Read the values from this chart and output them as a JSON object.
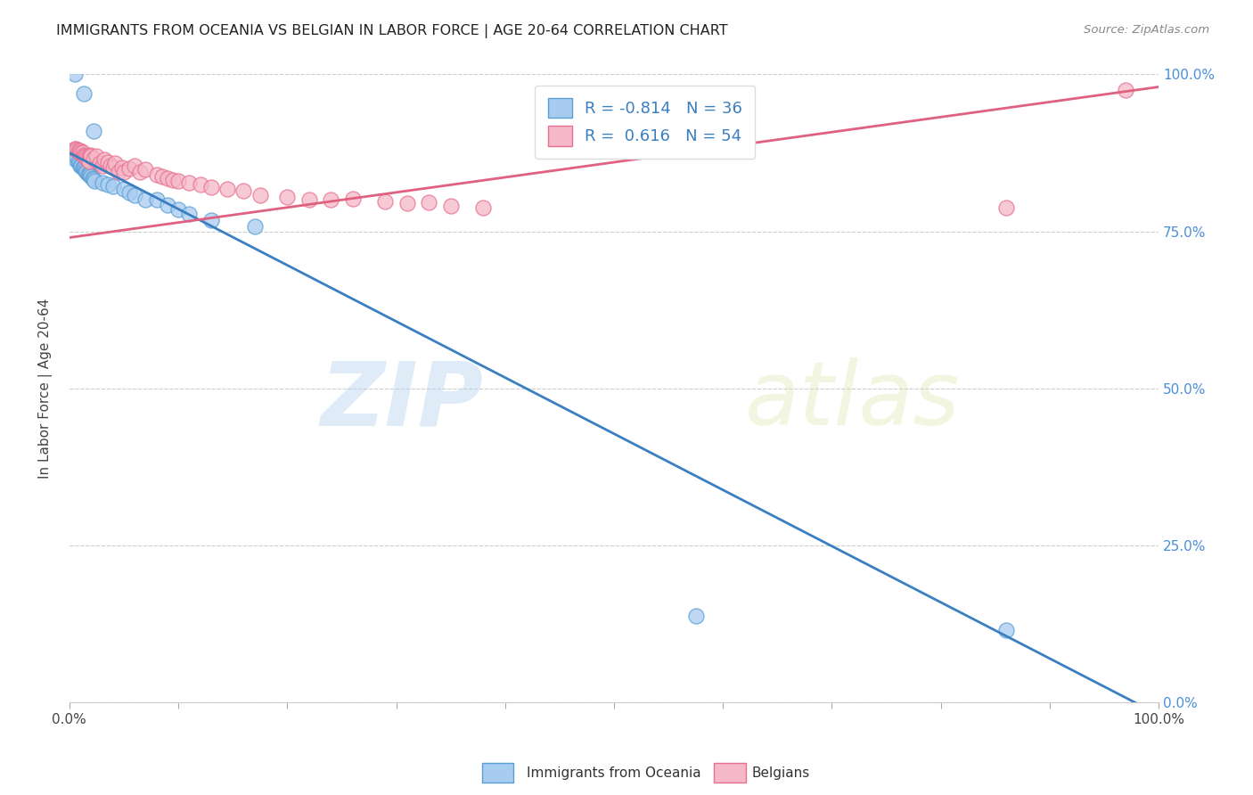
{
  "title": "IMMIGRANTS FROM OCEANIA VS BELGIAN IN LABOR FORCE | AGE 20-64 CORRELATION CHART",
  "source": "Source: ZipAtlas.com",
  "ylabel": "In Labor Force | Age 20-64",
  "xlim": [
    0.0,
    1.0
  ],
  "ylim": [
    0.0,
    1.0
  ],
  "xticks": [
    0.0,
    0.1,
    0.2,
    0.3,
    0.4,
    0.5,
    0.6,
    0.7,
    0.8,
    0.9,
    1.0
  ],
  "xticklabels_show": {
    "0.0": "0.0%",
    "1.0": "100.0%"
  },
  "yticks": [
    0.0,
    0.25,
    0.5,
    0.75,
    1.0
  ],
  "yticklabels_right": [
    "0.0%",
    "25.0%",
    "50.0%",
    "75.0%",
    "100.0%"
  ],
  "blue_R": "-0.814",
  "blue_N": "36",
  "pink_R": "0.616",
  "pink_N": "54",
  "blue_color": "#A8CCF0",
  "pink_color": "#F5B8C8",
  "blue_edge_color": "#5A9FD4",
  "pink_edge_color": "#E87090",
  "blue_line_color": "#3A7FC1",
  "pink_line_color": "#E06080",
  "right_axis_color": "#4A90D9",
  "watermark_zip": "ZIP",
  "watermark_atlas": "atlas",
  "legend_label_blue": "Immigrants from Oceania",
  "legend_label_pink": "Belgians",
  "blue_points": [
    [
      0.005,
      1.0
    ],
    [
      0.013,
      0.97
    ],
    [
      0.022,
      0.91
    ],
    [
      0.006,
      0.865
    ],
    [
      0.007,
      0.868
    ],
    [
      0.008,
      0.862
    ],
    [
      0.009,
      0.858
    ],
    [
      0.01,
      0.855
    ],
    [
      0.011,
      0.855
    ],
    [
      0.012,
      0.852
    ],
    [
      0.013,
      0.852
    ],
    [
      0.014,
      0.848
    ],
    [
      0.015,
      0.846
    ],
    [
      0.016,
      0.845
    ],
    [
      0.017,
      0.842
    ],
    [
      0.018,
      0.84
    ],
    [
      0.019,
      0.84
    ],
    [
      0.02,
      0.838
    ],
    [
      0.021,
      0.835
    ],
    [
      0.022,
      0.833
    ],
    [
      0.023,
      0.83
    ],
    [
      0.03,
      0.828
    ],
    [
      0.035,
      0.825
    ],
    [
      0.04,
      0.822
    ],
    [
      0.05,
      0.818
    ],
    [
      0.055,
      0.812
    ],
    [
      0.06,
      0.808
    ],
    [
      0.07,
      0.8
    ],
    [
      0.08,
      0.8
    ],
    [
      0.09,
      0.792
    ],
    [
      0.1,
      0.785
    ],
    [
      0.11,
      0.778
    ],
    [
      0.13,
      0.768
    ],
    [
      0.17,
      0.758
    ],
    [
      0.575,
      0.138
    ],
    [
      0.86,
      0.115
    ]
  ],
  "pink_points": [
    [
      0.005,
      0.882
    ],
    [
      0.006,
      0.882
    ],
    [
      0.007,
      0.88
    ],
    [
      0.008,
      0.878
    ],
    [
      0.009,
      0.876
    ],
    [
      0.01,
      0.878
    ],
    [
      0.011,
      0.875
    ],
    [
      0.012,
      0.875
    ],
    [
      0.013,
      0.872
    ],
    [
      0.014,
      0.87
    ],
    [
      0.015,
      0.869
    ],
    [
      0.016,
      0.866
    ],
    [
      0.017,
      0.864
    ],
    [
      0.018,
      0.862
    ],
    [
      0.019,
      0.872
    ],
    [
      0.02,
      0.87
    ],
    [
      0.022,
      0.866
    ],
    [
      0.025,
      0.87
    ],
    [
      0.028,
      0.858
    ],
    [
      0.03,
      0.855
    ],
    [
      0.032,
      0.865
    ],
    [
      0.035,
      0.86
    ],
    [
      0.038,
      0.855
    ],
    [
      0.04,
      0.852
    ],
    [
      0.042,
      0.858
    ],
    [
      0.045,
      0.845
    ],
    [
      0.048,
      0.852
    ],
    [
      0.05,
      0.845
    ],
    [
      0.055,
      0.85
    ],
    [
      0.06,
      0.855
    ],
    [
      0.065,
      0.845
    ],
    [
      0.07,
      0.848
    ],
    [
      0.08,
      0.84
    ],
    [
      0.085,
      0.838
    ],
    [
      0.09,
      0.835
    ],
    [
      0.095,
      0.832
    ],
    [
      0.1,
      0.83
    ],
    [
      0.11,
      0.828
    ],
    [
      0.12,
      0.825
    ],
    [
      0.13,
      0.82
    ],
    [
      0.145,
      0.818
    ],
    [
      0.16,
      0.815
    ],
    [
      0.175,
      0.808
    ],
    [
      0.2,
      0.805
    ],
    [
      0.22,
      0.8
    ],
    [
      0.24,
      0.8
    ],
    [
      0.26,
      0.802
    ],
    [
      0.29,
      0.798
    ],
    [
      0.31,
      0.795
    ],
    [
      0.33,
      0.796
    ],
    [
      0.35,
      0.79
    ],
    [
      0.38,
      0.788
    ],
    [
      0.86,
      0.788
    ],
    [
      0.97,
      0.975
    ]
  ],
  "blue_line_x": [
    0.0,
    1.0
  ],
  "blue_line_y": [
    0.875,
    -0.02
  ],
  "pink_line_x": [
    0.0,
    1.0
  ],
  "pink_line_y": [
    0.74,
    0.98
  ]
}
